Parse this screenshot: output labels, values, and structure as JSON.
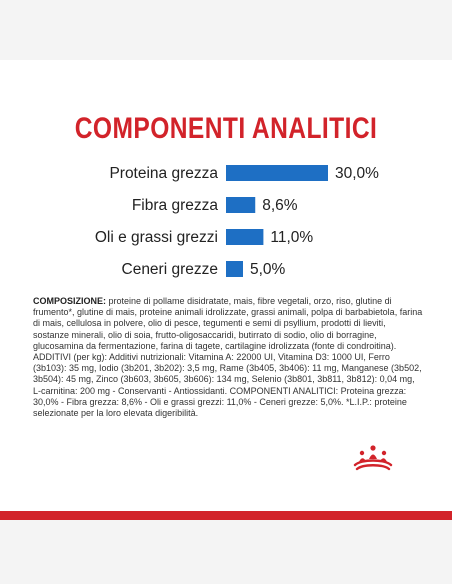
{
  "title": "COMPONENTI ANALITICI",
  "chart_data": {
    "type": "bar",
    "categories": [
      "Proteina grezza",
      "Fibra grezza",
      "Oli e grassi grezzi",
      "Ceneri grezze"
    ],
    "values": [
      30.0,
      8.6,
      11.0,
      5.0
    ],
    "value_labels": [
      "30,0%",
      "8,6%",
      "11,0%",
      "5,0%"
    ],
    "title": "COMPONENTI ANALITICI",
    "xlabel": "",
    "ylabel": "",
    "orientation": "horizontal",
    "grid": false,
    "bar_color": "#1e6fc4"
  },
  "composition": {
    "label": "COMPOSIZIONE:",
    "text": " proteine di pollame disidratate, mais, fibre vegetali, orzo, riso, glutine di frumento*, glutine di mais, proteine animali idrolizzate, grassi animali, polpa di barbabietola, farina di mais, cellulosa in polvere, olio di pesce, tegumenti e semi di psyllium, prodotti di lieviti, sostanze minerali, olio di soia, frutto-oligosaccaridi, butirrato di sodio, olio di borragine, glucosamina da fermentazione, farina di tagete, cartilagine idrolizzata (fonte di condroitina). ADDITIVI (per kg): Additivi nutrizionali: Vitamina A: 22000 UI, Vitamina D3: 1000 UI, Ferro (3b103): 35 mg, Iodio (3b201, 3b202): 3,5 mg, Rame (3b405, 3b406): 11 mg, Manganese (3b502, 3b504): 45 mg, Zinco (3b603, 3b605, 3b606): 134 mg, Selenio (3b801, 3b811, 3b812): 0,04 mg, L-carnitina: 200 mg - Conservanti - Antiossidanti. COMPONENTI ANALITICI: Proteina grezza: 30,0% - Fibra grezza: 8,6% - Oli e grassi grezzi: 11,0% - Ceneri grezze: 5,0%. *L.I.P.: proteine selezionate per la loro elevata digeribilità."
  },
  "colors": {
    "accent": "#d2232a",
    "bar": "#1e6fc4",
    "background": "#f4f4f4",
    "card": "#ffffff"
  },
  "logo_icon": "crown-logo-icon"
}
